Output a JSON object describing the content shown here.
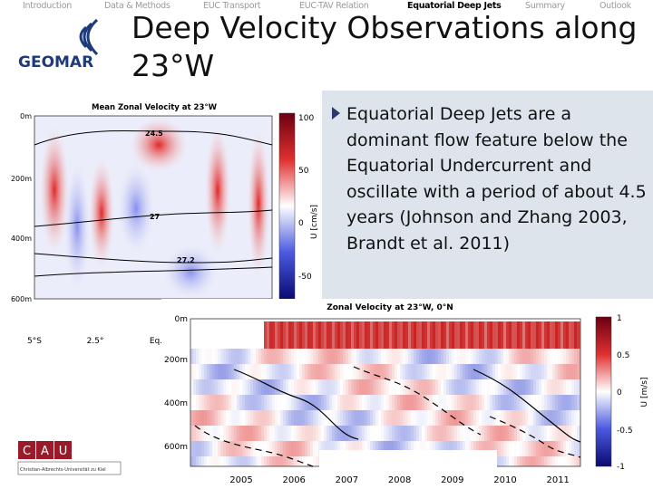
{
  "nav": [
    "Introduction",
    "Data & Methods",
    "EUC Transport",
    "EUC-TAV Relation",
    "Equatorial Deep Jets",
    "Summary",
    "Outlook"
  ],
  "logo": "GEOMAR",
  "title": "Deep Velocity Observations along 23°W",
  "bullet": "Equatorial Deep Jets are a dominant flow feature below the Equatorial Undercurrent and oscillate with a period of about 4.5 years (Johnson and Zhang 2003, Brandt et al. 2011)",
  "figure1": {
    "title": "Mean Zonal Velocity at 23°W",
    "y_labels": [
      "0m",
      "200m",
      "400m",
      "600m"
    ],
    "x_labels": [
      "5°S",
      "2.5°",
      "Eq."
    ],
    "colorbar_labels": [
      "100",
      "50",
      "0",
      "-50"
    ],
    "colorbar_title": "U [cm/s]",
    "contour_labels": [
      "24.5",
      "27",
      "27.2"
    ]
  },
  "figure2": {
    "title": "Zonal Velocity at 23°W, 0°N",
    "y_labels": [
      "0m",
      "200m",
      "400m",
      "600m"
    ],
    "x_labels": [
      "2005",
      "2006",
      "2007",
      "2008",
      "2009",
      "2010",
      "2011"
    ],
    "colorbar_labels": [
      "1",
      "0.5",
      "0",
      "-0.5",
      "-1"
    ],
    "colorbar_title": "U [m/s]"
  },
  "footer_logo": [
    "C",
    "A",
    "U"
  ],
  "footer_text": "Christian-Albrechts-Universität zu Kiel"
}
